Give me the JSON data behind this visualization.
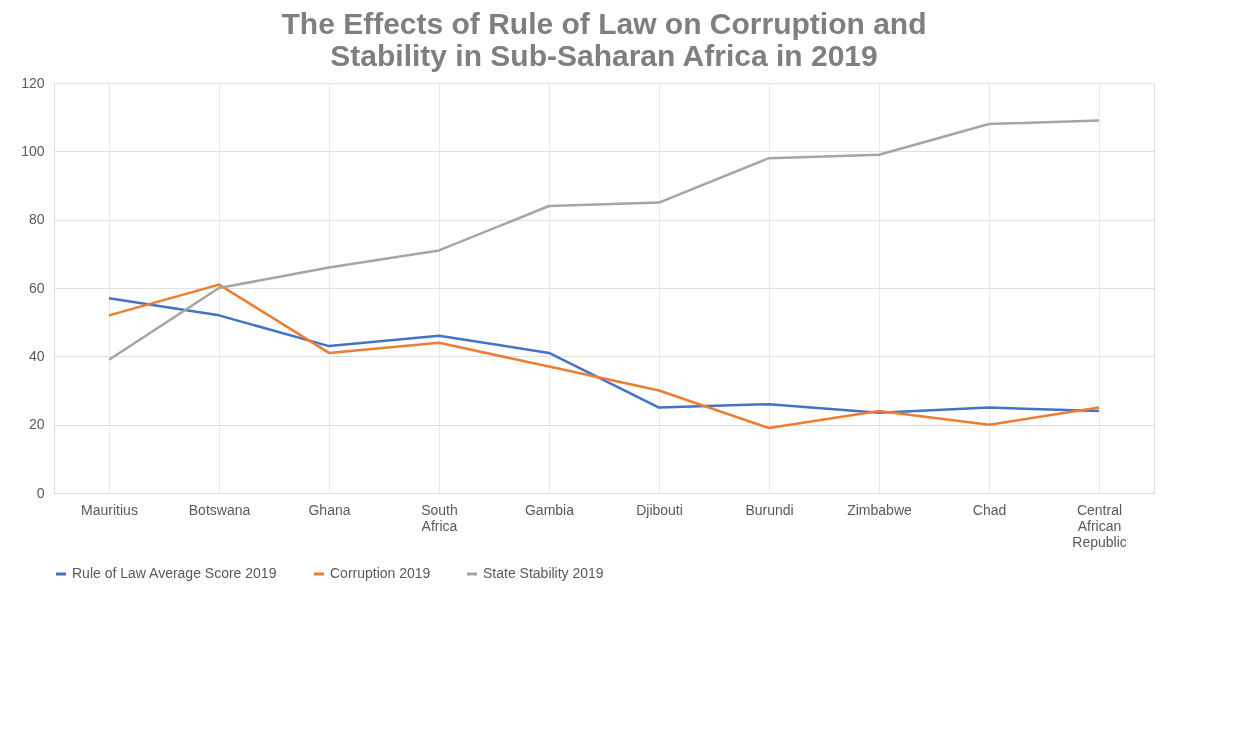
{
  "chart_data": {
    "type": "line",
    "title": "The Effects of Rule of Law on Corruption and Stability in Sub-Saharan Africa in 2019",
    "categories": [
      "Mauritius",
      "Botswana",
      "Ghana",
      "South Africa",
      "Gambia",
      "Djibouti",
      "Burundi",
      "Zimbabwe",
      "Chad",
      "Central African Republic"
    ],
    "series": [
      {
        "name": "Rule of Law Average Score 2019",
        "color": "#4472c4",
        "values": [
          57,
          52,
          43,
          46,
          41,
          25,
          26,
          23.5,
          25,
          24
        ]
      },
      {
        "name": "Corruption 2019",
        "color": "#ed7d31",
        "values": [
          52,
          61,
          41,
          44,
          37,
          30,
          19,
          24,
          20,
          25
        ]
      },
      {
        "name": "State Stability 2019",
        "color": "#a5a5a5",
        "values": [
          39,
          60,
          66,
          71,
          84,
          85,
          98,
          99,
          108,
          109
        ]
      }
    ],
    "ylim": [
      0,
      120
    ],
    "yticks": [
      0,
      20,
      40,
      60,
      80,
      100,
      120
    ],
    "grid": true,
    "legend": "bottom",
    "marker": "none",
    "line_style": "solid"
  }
}
